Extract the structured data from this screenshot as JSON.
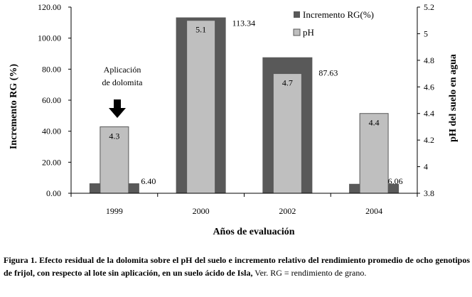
{
  "chart_data": {
    "type": "bar",
    "title": "",
    "categories": [
      "1999",
      "2000",
      "2002",
      "2004"
    ],
    "xlabel": "Años de evaluación",
    "series": [
      {
        "name": "Incremento RG(%)",
        "axis": "left",
        "color": "#595959",
        "values": [
          6.4,
          113.34,
          87.63,
          6.06
        ],
        "labels": [
          "6.40",
          "113.34",
          "87.63",
          "6.06"
        ]
      },
      {
        "name": "pH",
        "axis": "right",
        "color": "#bfbfbf",
        "values": [
          4.3,
          5.1,
          4.7,
          4.4
        ],
        "labels": [
          "4.3",
          "5.1",
          "4.7",
          "4.4"
        ]
      }
    ],
    "y_left": {
      "label": "Incremento RG (%)",
      "range": [
        0,
        120
      ],
      "ticks": [
        "0.00",
        "20.00",
        "40.00",
        "60.00",
        "80.00",
        "100.00",
        "120.00"
      ]
    },
    "y_right": {
      "label": "pH del suelo en agua",
      "range": [
        3.8,
        5.2
      ],
      "ticks": [
        "3.8",
        "4",
        "4.2",
        "4.4",
        "4.6",
        "4.8",
        "5",
        "5.2"
      ]
    },
    "legend_position": "top-right",
    "annotation": {
      "lines": [
        "Aplicación",
        "de dolomita"
      ],
      "category": "1999"
    },
    "grid": false
  },
  "caption": {
    "lead": "Figura 1.",
    "body": "Efecto residual de la dolomita sobre el pH del suelo e incremento relativo del rendimiento promedio de ocho genotipos de frijol, con respecto al lote sin aplicación, en un suelo ácido de Isla,",
    "tail": "Ver. RG = rendimiento de grano."
  }
}
